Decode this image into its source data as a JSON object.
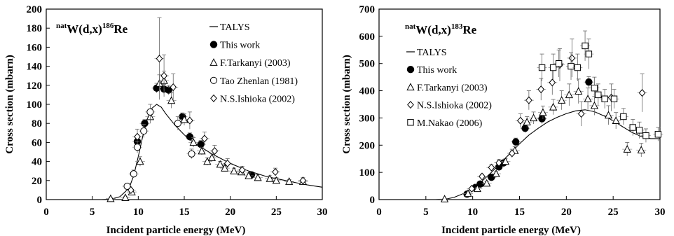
{
  "chart_data": [
    {
      "type": "scatter",
      "title_sup": "nat",
      "title_main": "W(d,x)",
      "title_sup2": "186",
      "title_end": "Re",
      "xlabel": "Incident particle energy (MeV)",
      "ylabel": "Cross section (mbarn)",
      "xlim": [
        0,
        30
      ],
      "ylim": [
        0,
        200
      ],
      "xticks": [
        0,
        5,
        10,
        15,
        20,
        25,
        30
      ],
      "yticks": [
        0,
        20,
        40,
        60,
        80,
        100,
        120,
        140,
        160,
        180,
        200
      ],
      "grid": false,
      "legend_position": "top-right",
      "series": [
        {
          "name": "TALYS",
          "marker": "line",
          "points": [
            [
              6,
              0
            ],
            [
              7,
              0.3
            ],
            [
              8,
              3
            ],
            [
              9,
              12
            ],
            [
              9.5,
              25
            ],
            [
              10,
              45
            ],
            [
              10.5,
              67
            ],
            [
              11,
              85
            ],
            [
              11.5,
              96
            ],
            [
              12,
              100
            ],
            [
              12.5,
              97
            ],
            [
              13,
              90
            ],
            [
              14,
              78
            ],
            [
              15,
              68
            ],
            [
              16,
              60
            ],
            [
              17,
              54
            ],
            [
              18,
              48
            ],
            [
              19,
              43
            ],
            [
              20,
              38
            ],
            [
              21,
              34
            ],
            [
              22,
              30
            ],
            [
              23,
              27
            ],
            [
              24,
              24
            ],
            [
              25,
              22
            ],
            [
              26,
              20
            ],
            [
              27,
              18
            ],
            [
              28,
              16
            ],
            [
              29,
              14.5
            ],
            [
              30,
              13
            ]
          ]
        },
        {
          "name": "This work",
          "marker": "filled-circle",
          "points": [
            [
              9.9,
              61
            ],
            [
              10.7,
              80
            ],
            [
              12.0,
              117
            ],
            [
              12.8,
              116
            ],
            [
              13.3,
              115
            ],
            [
              14.8,
              87
            ],
            [
              15.6,
              66
            ],
            [
              16.8,
              58
            ],
            [
              22.3,
              26
            ]
          ],
          "yerr": [
            4,
            4,
            5,
            5,
            5,
            4,
            4,
            4,
            3
          ]
        },
        {
          "name": "F.Tarkanyi (2003)",
          "marker": "open-triangle",
          "points": [
            [
              7.0,
              1
            ],
            [
              8.6,
              2
            ],
            [
              9.3,
              8
            ],
            [
              10.2,
              40
            ],
            [
              11.3,
              87
            ],
            [
              12.3,
              122
            ],
            [
              12.8,
              125
            ],
            [
              13.6,
              104
            ],
            [
              15.0,
              84
            ],
            [
              16.0,
              60
            ],
            [
              16.9,
              51
            ],
            [
              17.5,
              40
            ],
            [
              18.0,
              44
            ],
            [
              18.9,
              37
            ],
            [
              19.4,
              33
            ],
            [
              20.4,
              30
            ],
            [
              21.2,
              29
            ],
            [
              22.0,
              25
            ],
            [
              23.0,
              23
            ],
            [
              24.3,
              22
            ],
            [
              25.0,
              20
            ],
            [
              26.4,
              19
            ],
            [
              27.9,
              19
            ]
          ],
          "yerr": [
            1,
            1,
            2,
            5,
            7,
            9,
            10,
            8,
            6,
            5,
            4,
            4,
            4,
            3,
            3,
            3,
            3,
            3,
            3,
            3,
            3,
            2,
            2
          ]
        },
        {
          "name": "Tao Zhenlan (1981)",
          "marker": "open-circle",
          "points": [
            [
              8.8,
              14
            ],
            [
              9.5,
              27
            ],
            [
              9.9,
              55
            ],
            [
              10.6,
              72
            ],
            [
              11.3,
              92
            ],
            [
              14.3,
              80
            ],
            [
              15.8,
              48
            ]
          ],
          "yerr": [
            3,
            4,
            6,
            7,
            8,
            7,
            5
          ]
        },
        {
          "name": "N.S.Ishioka (2002)",
          "marker": "open-diamond",
          "points": [
            [
              9.2,
              10
            ],
            [
              9.9,
              66
            ],
            [
              12.3,
              148
            ],
            [
              12.8,
              130
            ],
            [
              13.8,
              118
            ],
            [
              15.6,
              83
            ],
            [
              17.2,
              64
            ],
            [
              18.3,
              51
            ],
            [
              19.7,
              38
            ],
            [
              21.3,
              31
            ],
            [
              24.9,
              29
            ],
            [
              27.9,
              20
            ]
          ],
          "yerr": [
            2,
            8,
            43,
            22,
            14,
            9,
            7,
            6,
            5,
            4,
            4,
            3
          ]
        }
      ]
    },
    {
      "type": "scatter",
      "title_sup": "nat",
      "title_main": "W(d,x)",
      "title_sup2": "183",
      "title_end": "Re",
      "xlabel": "Incident particle energy (MeV)",
      "ylabel": "Cross section (mbarn)",
      "xlim": [
        0,
        30
      ],
      "ylim": [
        0,
        700
      ],
      "xticks": [
        0,
        5,
        10,
        15,
        20,
        25,
        30
      ],
      "yticks": [
        0,
        100,
        200,
        300,
        400,
        500,
        600,
        700
      ],
      "grid": false,
      "legend_position": "top-left",
      "series": [
        {
          "name": "TALYS",
          "marker": "line",
          "points": [
            [
              6,
              0
            ],
            [
              7,
              1
            ],
            [
              8,
              8
            ],
            [
              9,
              22
            ],
            [
              10,
              42
            ],
            [
              11,
              68
            ],
            [
              12,
              100
            ],
            [
              13,
              135
            ],
            [
              14,
              170
            ],
            [
              15,
              205
            ],
            [
              16,
              237
            ],
            [
              17,
              262
            ],
            [
              18,
              285
            ],
            [
              19,
              302
            ],
            [
              20,
              316
            ],
            [
              21,
              326
            ],
            [
              22,
              330
            ],
            [
              23,
              323
            ],
            [
              24,
              308
            ],
            [
              25,
              290
            ],
            [
              26,
              268
            ],
            [
              27,
              247
            ],
            [
              28,
              232
            ],
            [
              29,
              224
            ],
            [
              30,
              224
            ]
          ]
        },
        {
          "name": "This work",
          "marker": "filled-circle",
          "points": [
            [
              9.4,
              20
            ],
            [
              10.3,
              45
            ],
            [
              10.8,
              57
            ],
            [
              12.0,
              82
            ],
            [
              12.8,
              120
            ],
            [
              13.3,
              135
            ],
            [
              14.6,
              212
            ],
            [
              15.6,
              262
            ],
            [
              17.4,
              297
            ],
            [
              22.4,
              432
            ]
          ],
          "yerr": [
            5,
            6,
            6,
            8,
            10,
            10,
            14,
            16,
            18,
            20
          ]
        },
        {
          "name": "F.Tarkanyi (2003)",
          "marker": "open-triangle",
          "points": [
            [
              7.0,
              2
            ],
            [
              9.5,
              22
            ],
            [
              10.5,
              40
            ],
            [
              11.5,
              60
            ],
            [
              12.5,
              95
            ],
            [
              13.5,
              140
            ],
            [
              14.5,
              180
            ],
            [
              15.8,
              285
            ],
            [
              16.5,
              300
            ],
            [
              17.5,
              320
            ],
            [
              18.6,
              340
            ],
            [
              19.5,
              365
            ],
            [
              20.3,
              385
            ],
            [
              21.3,
              398
            ],
            [
              22.3,
              370
            ],
            [
              23.0,
              345
            ],
            [
              24.5,
              310
            ],
            [
              25.3,
              290
            ],
            [
              26.5,
              185
            ],
            [
              28.0,
              182
            ]
          ],
          "yerr": [
            2,
            4,
            5,
            6,
            8,
            10,
            14,
            20,
            22,
            24,
            28,
            35,
            40,
            45,
            40,
            35,
            35,
            30,
            25,
            25
          ]
        },
        {
          "name": "N.S.Ishioka (2002)",
          "marker": "open-diamond",
          "points": [
            [
              9.9,
              40
            ],
            [
              11.0,
              85
            ],
            [
              12.0,
              118
            ],
            [
              12.8,
              135
            ],
            [
              14.2,
              170
            ],
            [
              15.1,
              290
            ],
            [
              16.0,
              365
            ],
            [
              17.3,
              405
            ],
            [
              18.5,
              430
            ],
            [
              19.3,
              495
            ],
            [
              20.6,
              520
            ],
            [
              21.6,
              315
            ],
            [
              24.8,
              375
            ],
            [
              28.1,
              392
            ]
          ],
          "yerr": [
            5,
            8,
            10,
            12,
            15,
            25,
            35,
            40,
            45,
            60,
            70,
            45,
            50,
            70
          ]
        },
        {
          "name": "M.Nakao (2006)",
          "marker": "open-square",
          "points": [
            [
              17.4,
              485
            ],
            [
              18.6,
              485
            ],
            [
              19.2,
              500
            ],
            [
              20.5,
              490
            ],
            [
              21.2,
              485
            ],
            [
              22.0,
              565
            ],
            [
              22.4,
              535
            ],
            [
              23.0,
              410
            ],
            [
              23.4,
              385
            ],
            [
              24.1,
              370
            ],
            [
              25.1,
              370
            ],
            [
              26.1,
              305
            ],
            [
              27.1,
              265
            ],
            [
              27.8,
              255
            ],
            [
              28.5,
              235
            ],
            [
              29.8,
              240
            ]
          ],
          "yerr": [
            50,
            50,
            50,
            50,
            50,
            55,
            55,
            40,
            40,
            35,
            35,
            30,
            30,
            30,
            25,
            25
          ]
        }
      ]
    }
  ]
}
